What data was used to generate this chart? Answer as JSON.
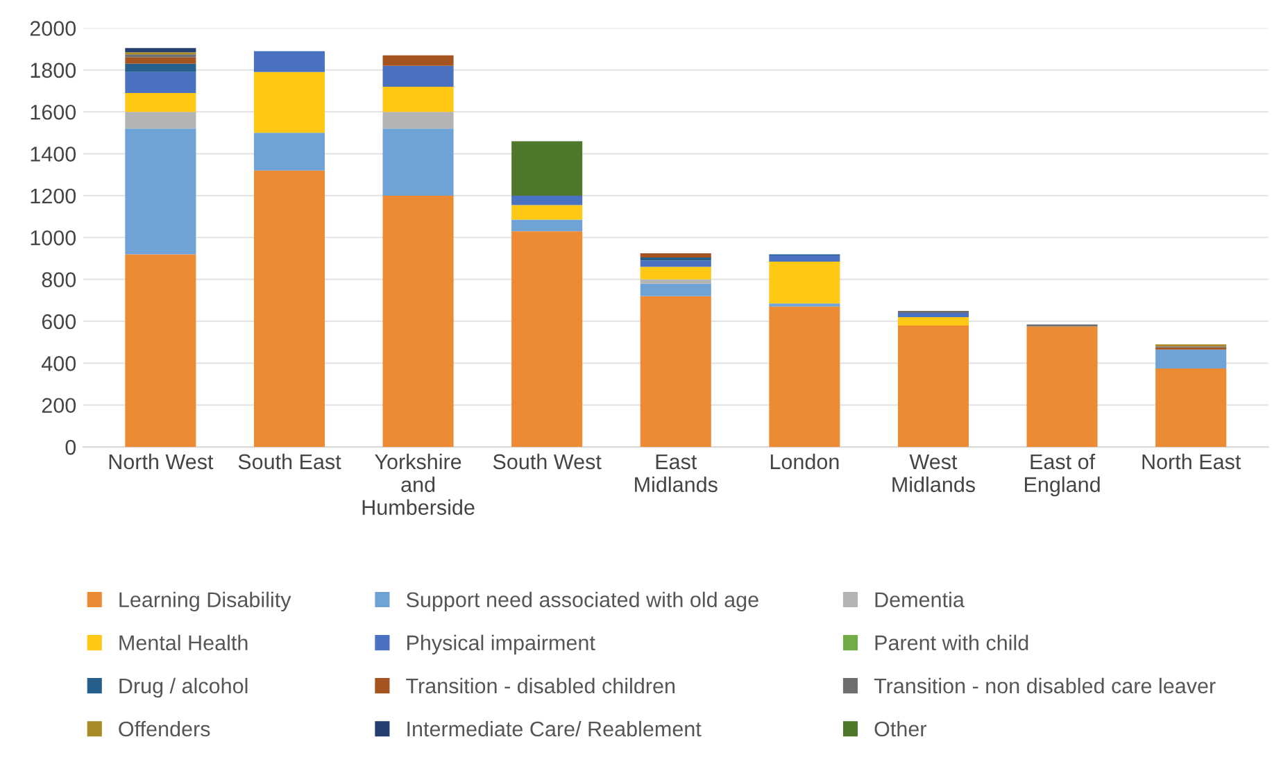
{
  "chart_data": {
    "type": "bar",
    "stacked": true,
    "categories": [
      "North West",
      "South East",
      "Yorkshire\nand\nHumberside",
      "South West",
      "East\nMidlands",
      "London",
      "West\nMidlands",
      "East of\nEngland",
      "North East"
    ],
    "series": [
      {
        "name": "Learning Disability",
        "color": "#ed8b35",
        "values": [
          920,
          1320,
          1200,
          1030,
          720,
          670,
          580,
          575,
          375
        ]
      },
      {
        "name": "Support need associated with old age",
        "color": "#6fa3d6",
        "values": [
          600,
          180,
          320,
          55,
          60,
          15,
          0,
          0,
          90
        ]
      },
      {
        "name": "Dementia",
        "color": "#b4b4b4",
        "values": [
          80,
          0,
          80,
          0,
          20,
          null,
          0,
          0,
          0
        ]
      },
      {
        "name": "Mental Health",
        "color": "#fec814",
        "values": [
          90,
          290,
          120,
          70,
          60,
          200,
          40,
          0,
          0
        ]
      },
      {
        "name": "Physical impairment",
        "color": "#4a72c0",
        "values": [
          100,
          100,
          100,
          45,
          30,
          30,
          20,
          0,
          0
        ]
      },
      {
        "name": "Parent with child",
        "color": "#70ad47",
        "values": [
          0,
          0,
          0,
          0,
          0,
          0,
          0,
          0,
          0
        ]
      },
      {
        "name": "Drug / alcohol",
        "color": "#265e8c",
        "values": [
          40,
          0,
          0,
          0,
          15,
          5,
          0,
          0,
          0
        ]
      },
      {
        "name": "Transition - disabled children",
        "color": "#a5541f",
        "values": [
          30,
          0,
          50,
          0,
          20,
          0,
          0,
          0,
          10
        ]
      },
      {
        "name": "Transition - non disabled care leaver",
        "color": "#6e6e6e",
        "values": [
          15,
          0,
          0,
          0,
          0,
          0,
          10,
          10,
          5
        ]
      },
      {
        "name": "Offenders",
        "color": "#a98a24",
        "values": [
          10,
          0,
          0,
          0,
          0,
          0,
          0,
          0,
          10
        ]
      },
      {
        "name": "Intermediate Care/ Reablement",
        "color": "#243e6f",
        "values": [
          20,
          0,
          0,
          0,
          0,
          0,
          0,
          0,
          0
        ]
      },
      {
        "name": "Other",
        "color": "#50782c",
        "values": [
          0,
          0,
          0,
          260,
          0,
          0,
          0,
          0,
          0
        ]
      }
    ],
    "ylim": [
      0,
      2000
    ],
    "yticks": [
      0,
      200,
      400,
      600,
      800,
      1000,
      1200,
      1400,
      1600,
      1800,
      2000
    ],
    "grid": "y",
    "legend": "bottom"
  }
}
